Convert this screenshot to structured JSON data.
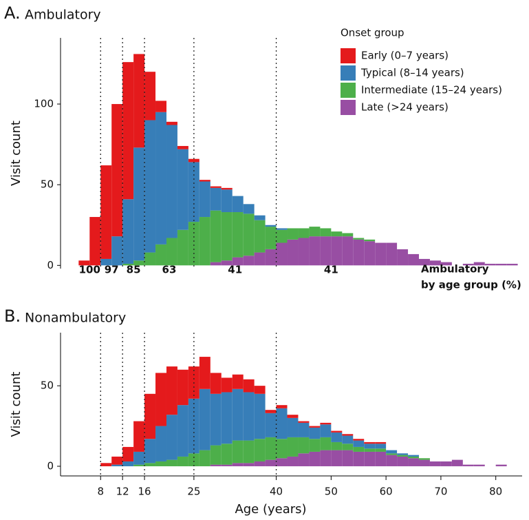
{
  "chart_data": [
    {
      "type": "histogram",
      "panel": "A.",
      "title": "Ambulatory",
      "ylabel": "Visit count",
      "bins": [
        4,
        6,
        8,
        10,
        12,
        14,
        16,
        18,
        20,
        22,
        24,
        26,
        28,
        30,
        32,
        34,
        36,
        38,
        40,
        42,
        44,
        46,
        48,
        50,
        52,
        54,
        56,
        58,
        60,
        62,
        64,
        66,
        68,
        70,
        72,
        74,
        76,
        78,
        80,
        82,
        84
      ],
      "xlim": [
        0.7,
        84.8
      ],
      "ylim": [
        -2,
        141
      ],
      "yticks": [
        0,
        50,
        100
      ],
      "vlines": [
        8,
        12,
        16,
        25,
        40
      ],
      "ambulatory_pct": [
        100,
        97,
        85,
        63,
        41,
        41
      ],
      "annotation": [
        "Ambulatory",
        "by age group (%)"
      ],
      "legend": "top-right",
      "legend_title": "Onset group",
      "series": [
        {
          "name": "Early (0–7 years)",
          "color": "#e41a1c",
          "values": [
            3,
            30,
            58,
            82,
            85,
            58,
            30,
            7,
            2,
            2,
            2,
            1,
            1,
            1,
            0,
            0,
            0,
            0,
            0,
            0,
            0,
            0,
            0,
            0,
            0,
            0,
            0,
            0,
            0,
            0,
            0,
            0,
            0,
            0,
            0,
            0,
            0,
            0,
            0,
            0
          ]
        },
        {
          "name": "Typical (8–14 years)",
          "color": "#377eb8",
          "values": [
            0,
            0,
            4,
            18,
            40,
            70,
            82,
            82,
            70,
            50,
            37,
            22,
            14,
            14,
            10,
            6,
            3,
            1,
            1,
            0,
            0,
            0,
            0,
            0,
            0,
            0,
            0,
            0,
            0,
            0,
            0,
            0,
            0,
            0,
            0,
            0,
            0,
            0,
            0,
            0
          ]
        },
        {
          "name": "Intermediate (15–24 years)",
          "color": "#4daf4a",
          "values": [
            0,
            0,
            0,
            0,
            1,
            3,
            8,
            13,
            17,
            22,
            27,
            30,
            32,
            30,
            28,
            26,
            20,
            14,
            8,
            7,
            6,
            6,
            5,
            3,
            2,
            1,
            1,
            0,
            0,
            0,
            0,
            0,
            0,
            0,
            0,
            0,
            0,
            0,
            0,
            0
          ]
        },
        {
          "name": "Late (>24 years)",
          "color": "#984ea3",
          "values": [
            0,
            0,
            0,
            0,
            0,
            0,
            0,
            0,
            0,
            0,
            0,
            0,
            2,
            3,
            5,
            6,
            8,
            10,
            14,
            16,
            17,
            18,
            18,
            18,
            18,
            16,
            15,
            14,
            14,
            10,
            7,
            4,
            3,
            2,
            0,
            1,
            2,
            1,
            1,
            1
          ]
        }
      ]
    },
    {
      "type": "histogram",
      "panel": "B.",
      "title": "Nonambulatory",
      "ylabel": "Visit count",
      "xlabel": "Age (years)",
      "bins": [
        4,
        6,
        8,
        10,
        12,
        14,
        16,
        18,
        20,
        22,
        24,
        26,
        28,
        30,
        32,
        34,
        36,
        38,
        40,
        42,
        44,
        46,
        48,
        50,
        52,
        54,
        56,
        58,
        60,
        62,
        64,
        66,
        68,
        70,
        72,
        74,
        76,
        78,
        80,
        82,
        84
      ],
      "xlim": [
        0.7,
        84.8
      ],
      "ylim": [
        -6,
        83
      ],
      "yticks": [
        0,
        50
      ],
      "xticks": [
        8,
        12,
        16,
        25,
        40,
        50,
        60,
        70,
        80
      ],
      "vlines": [
        8,
        12,
        16,
        25,
        40
      ],
      "series": [
        {
          "name": "Early (0–7 years)",
          "color": "#e41a1c",
          "values": [
            0,
            0,
            2,
            5,
            9,
            19,
            28,
            33,
            30,
            22,
            20,
            20,
            13,
            9,
            9,
            8,
            5,
            2,
            2,
            2,
            1,
            1,
            1,
            1,
            1,
            1,
            1,
            1,
            0,
            0,
            0,
            0,
            0,
            0,
            0,
            0,
            0,
            0,
            0,
            0
          ]
        },
        {
          "name": "Typical (8–14 years)",
          "color": "#377eb8",
          "values": [
            0,
            0,
            0,
            1,
            3,
            8,
            15,
            22,
            28,
            32,
            34,
            38,
            32,
            32,
            32,
            30,
            28,
            15,
            19,
            12,
            9,
            7,
            8,
            6,
            5,
            4,
            3,
            3,
            2,
            1,
            1,
            0,
            0,
            0,
            0,
            0,
            0,
            0,
            0,
            0
          ]
        },
        {
          "name": "Intermediate (15–24 years)",
          "color": "#4daf4a",
          "values": [
            0,
            0,
            0,
            0,
            0,
            1,
            2,
            3,
            4,
            6,
            8,
            10,
            12,
            13,
            14,
            14,
            14,
            14,
            12,
            12,
            10,
            8,
            8,
            5,
            4,
            3,
            2,
            2,
            1,
            1,
            1,
            1,
            0,
            0,
            0,
            0,
            0,
            0,
            0,
            0
          ]
        },
        {
          "name": "Late (>24 years)",
          "color": "#984ea3",
          "values": [
            0,
            0,
            0,
            0,
            0,
            0,
            0,
            0,
            0,
            0,
            0,
            0,
            1,
            1,
            2,
            2,
            3,
            4,
            5,
            6,
            8,
            9,
            10,
            10,
            10,
            9,
            9,
            9,
            7,
            6,
            5,
            4,
            3,
            3,
            4,
            1,
            1,
            0,
            1,
            0
          ]
        }
      ]
    }
  ]
}
